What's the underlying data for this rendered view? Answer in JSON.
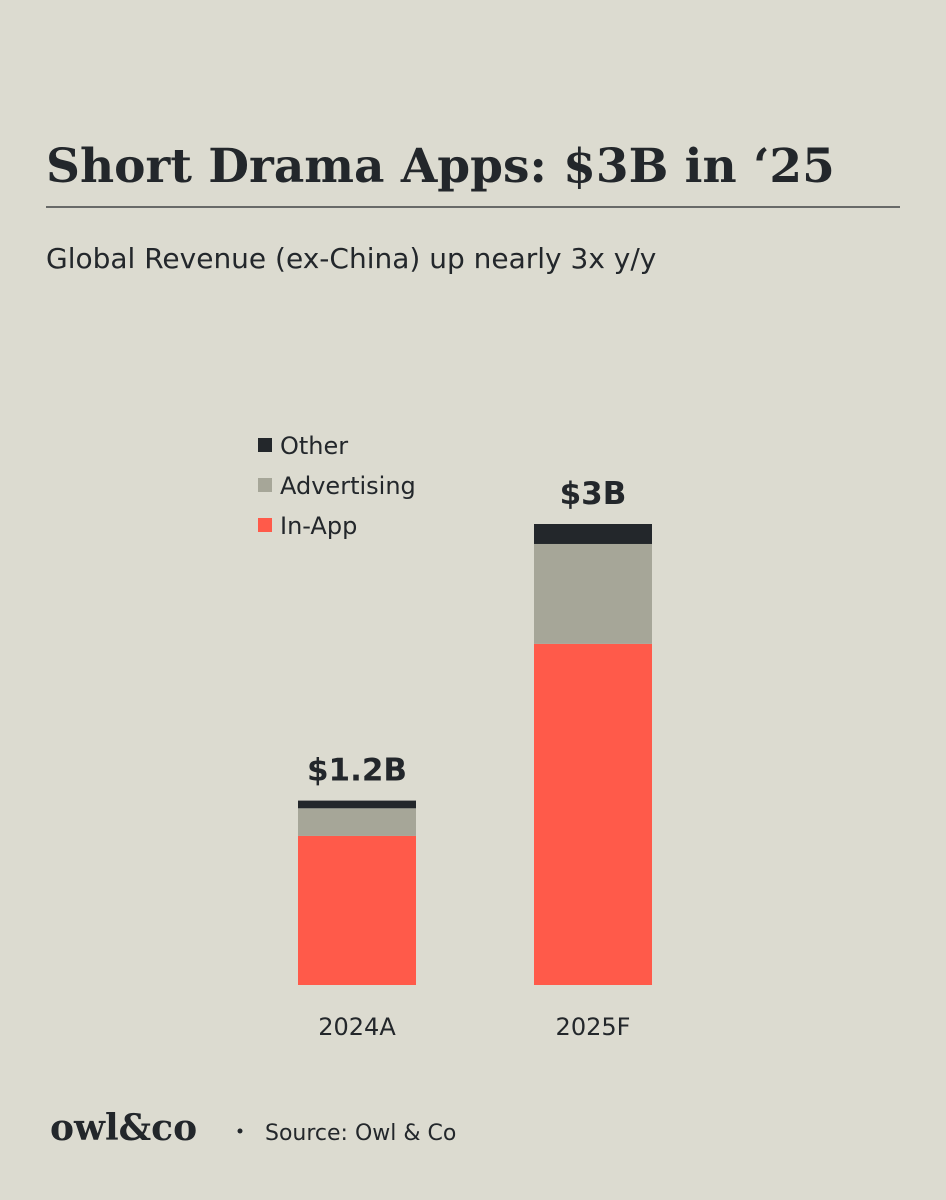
{
  "chart_data": {
    "type": "stacked_bar",
    "title": "Short Drama Apps: $3B in ‘25",
    "subtitle": "Global Revenue (ex-China) up nearly 3x y/y",
    "categories": [
      "2024A",
      "2025F"
    ],
    "series": [
      {
        "name": "In-App",
        "color": "#ff5a4a",
        "values": [
          0.97,
          2.22
        ]
      },
      {
        "name": "Advertising",
        "color": "#a6a698",
        "values": [
          0.18,
          0.65
        ]
      },
      {
        "name": "Other",
        "color": "#23272b",
        "values": [
          0.05,
          0.13
        ]
      }
    ],
    "totals": {
      "values": [
        1.2,
        3
      ],
      "value_labels": [
        "$1.2B",
        "$3B"
      ]
    },
    "footer": {
      "logo": "owl&co",
      "source": "Source: Owl & Co"
    }
  }
}
